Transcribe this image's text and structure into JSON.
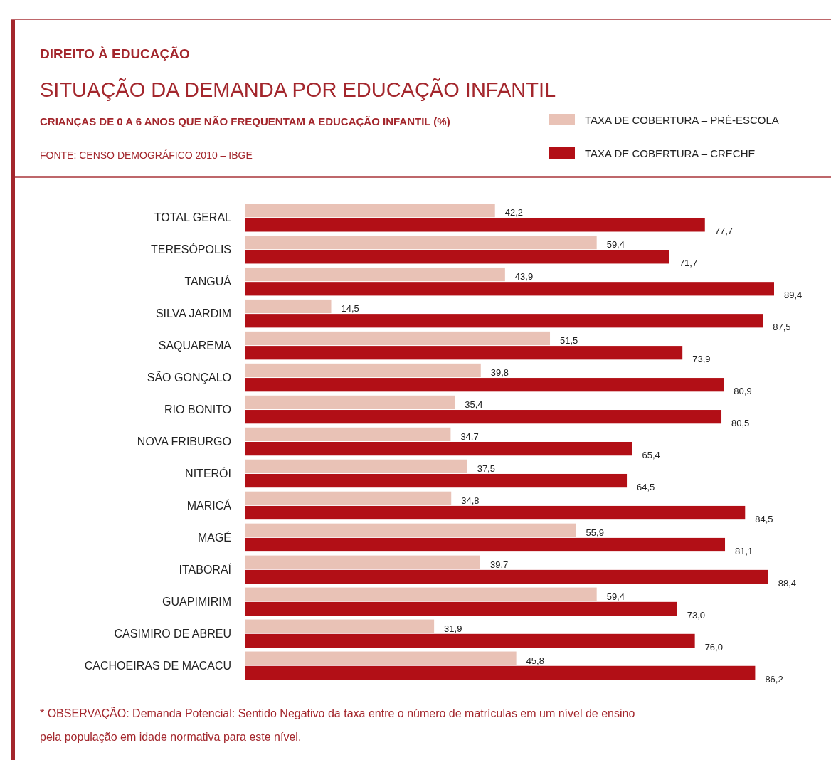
{
  "chart_data": {
    "type": "bar",
    "orientation": "horizontal",
    "title": "SITUAÇÃO DA DEMANDA POR EDUCAÇÃO INFANTIL",
    "subtitle": "CRIANÇAS DE 0 A 6 ANOS QUE NÃO FREQUENTAM A EDUCAÇÃO INFANTIL (%)",
    "annotations": [
      "DIREITO À EDUCAÇÃO",
      "FONTE: CENSO DEMOGRÁFICO 2010 – IBGE",
      "* OBSERVAÇÃO: Demanda Potencial: Sentido Negativo da taxa entre o número de matrículas em um nível de ensino pela população em idade normativa para este nível."
    ],
    "categories": [
      "TOTAL GERAL",
      "TERESÓPOLIS",
      "TANGUÁ",
      "SILVA JARDIM",
      "SAQUAREMA",
      "SÃO GONÇALO",
      "RIO BONITO",
      "NOVA FRIBURGO",
      "NITERÓI",
      "MARICÁ",
      "MAGÉ",
      "ITABORAÍ",
      "GUAPIMIRIM",
      "CASIMIRO DE ABREU",
      "CACHOEIRAS DE MACACU"
    ],
    "series": [
      {
        "name": "TAXA DE COBERTURA – PRÉ-ESCOLA",
        "color": "#e9c2b6",
        "values": [
          42.2,
          59.4,
          43.9,
          14.5,
          51.5,
          39.8,
          35.4,
          34.7,
          37.5,
          34.8,
          55.9,
          39.7,
          59.4,
          31.9,
          45.8
        ],
        "value_labels": [
          "42,2",
          "59,4",
          "43,9",
          "14,5",
          "51,5",
          "39,8",
          "35,4",
          "34,7",
          "37,5",
          "34,8",
          "55,9",
          "39,7",
          "59,4",
          "31,9",
          "45,8"
        ]
      },
      {
        "name": "TAXA DE COBERTURA – CRECHE",
        "color": "#b20f16",
        "values": [
          77.7,
          71.7,
          89.4,
          87.5,
          73.9,
          80.9,
          80.5,
          65.4,
          64.5,
          84.5,
          81.1,
          88.4,
          73.0,
          76.0,
          86.2
        ],
        "value_labels": [
          "77,7",
          "71,7",
          "89,4",
          "87,5",
          "73,9",
          "80,9",
          "80,5",
          "65,4",
          "64,5",
          "84,5",
          "81,1",
          "88,4",
          "73,0",
          "76,0",
          "86,2"
        ]
      }
    ],
    "legend": "top right"
  }
}
